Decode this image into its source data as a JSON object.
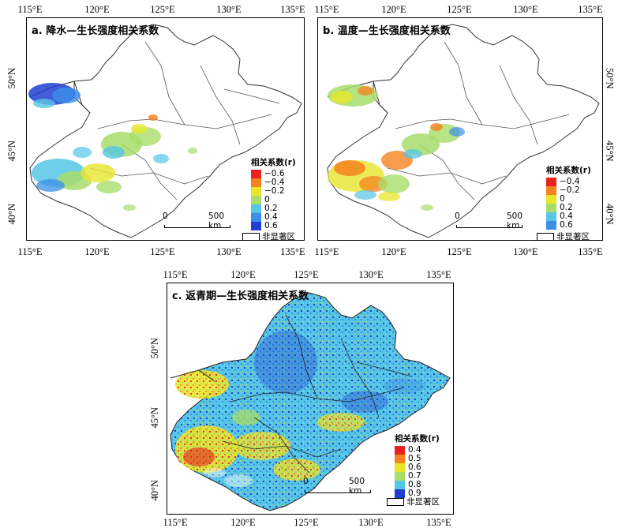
{
  "panels": [
    {
      "id": "a",
      "title": "a. 降水—生长强度相关系数",
      "lon_ticks": [
        "115°E",
        "120°E",
        "125°E",
        "130°E",
        "135°E"
      ],
      "lat_ticks": [
        "50°N",
        "45°N",
        "40°N"
      ],
      "legend_title": "相关系数(r)",
      "legend": [
        {
          "label": "−0.6",
          "color": "#e8231f"
        },
        {
          "label": "−0.4",
          "color": "#f5821f"
        },
        {
          "label": "−0.2",
          "color": "#e9e62a"
        },
        {
          "label": "0",
          "color": "#a8dd6a"
        },
        {
          "label": "0.2",
          "color": "#56c5e6"
        },
        {
          "label": "0.4",
          "color": "#3b8fe8"
        },
        {
          "label": "0.6",
          "color": "#1f3fcf"
        }
      ],
      "scale_zero": "0",
      "scale_label": "500 km",
      "nonsig_label": "非显著区"
    },
    {
      "id": "b",
      "title": "b. 温度—生长强度相关系数",
      "lon_ticks": [
        "115°E",
        "120°E",
        "125°E",
        "130°E",
        "135°E"
      ],
      "lat_ticks": [
        "50°N",
        "45°N",
        "40°N"
      ],
      "legend_title": "相关系数(r)",
      "legend": [
        {
          "label": "−0.4",
          "color": "#e8231f"
        },
        {
          "label": "−0.2",
          "color": "#f5821f"
        },
        {
          "label": "0",
          "color": "#e9e62a"
        },
        {
          "label": "0.2",
          "color": "#a8dd6a"
        },
        {
          "label": "0.4",
          "color": "#56c5e6"
        },
        {
          "label": "0.6",
          "color": "#3b8fe8"
        }
      ],
      "scale_zero": "0",
      "scale_label": "500 km",
      "nonsig_label": "非显著区"
    },
    {
      "id": "c",
      "title": "c. 返青期—生长强度相关系数",
      "lon_ticks": [
        "115°E",
        "120°E",
        "125°E",
        "130°E",
        "135°E"
      ],
      "lat_ticks": [
        "50°N",
        "45°N",
        "40°N"
      ],
      "legend_title": "相关系数(r)",
      "legend": [
        {
          "label": "0.4",
          "color": "#e8231f"
        },
        {
          "label": "0.5",
          "color": "#f5821f"
        },
        {
          "label": "0.6",
          "color": "#e9e62a"
        },
        {
          "label": "0.7",
          "color": "#a8dd6a"
        },
        {
          "label": "0.8",
          "color": "#56c5e6"
        },
        {
          "label": "0.9",
          "color": "#1f3fcf"
        }
      ],
      "scale_zero": "0",
      "scale_label": "500 km",
      "nonsig_label": "非显著区"
    }
  ]
}
